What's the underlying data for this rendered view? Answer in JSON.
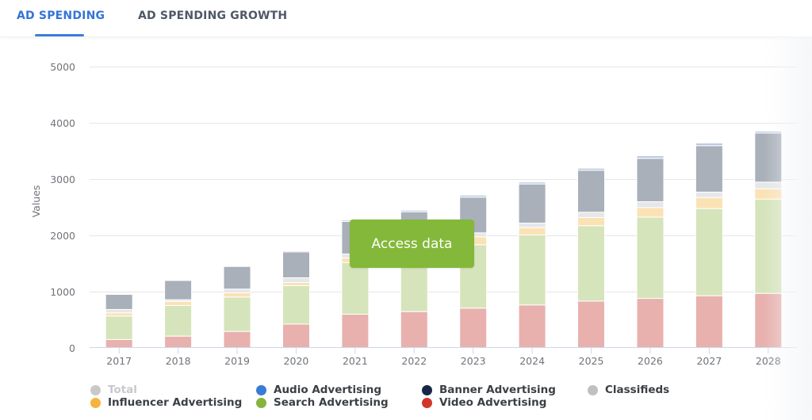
{
  "tabs": [
    {
      "label": "AD SPENDING",
      "active": true
    },
    {
      "label": "AD SPENDING GROWTH",
      "active": false
    }
  ],
  "overlay": {
    "access_button_label": "Access data"
  },
  "legend": [
    {
      "name": "Total",
      "color": "#c8c8c8",
      "enabled": false
    },
    {
      "name": "Audio Advertising",
      "color": "#3a7bd5",
      "enabled": true
    },
    {
      "name": "Banner Advertising",
      "color": "#162647",
      "enabled": true
    },
    {
      "name": "Classifieds",
      "color": "#c0c0c0",
      "enabled": true
    },
    {
      "name": "Influencer Advertising",
      "color": "#f4b43f",
      "enabled": true
    },
    {
      "name": "Search Advertising",
      "color": "#86b43e",
      "enabled": true
    },
    {
      "name": "Video Advertising",
      "color": "#d2362a",
      "enabled": true
    }
  ],
  "chart_data": {
    "type": "bar",
    "stacked": true,
    "title": "",
    "xlabel": "",
    "ylabel": "Values",
    "ylim": [
      0,
      5000
    ],
    "yticks": [
      0,
      1000,
      2000,
      3000,
      4000,
      5000
    ],
    "grid": true,
    "legend_position": "bottom",
    "categories": [
      "2017",
      "2018",
      "2019",
      "2020",
      "2021",
      "2022",
      "2023",
      "2024",
      "2025",
      "2026",
      "2027",
      "2028"
    ],
    "series": [
      {
        "name": "Video Advertising",
        "fill": "#e8b1ae",
        "values": [
          141,
          202,
          286,
          418,
          592,
          638,
          700,
          756,
          826,
          873,
          920,
          962
        ]
      },
      {
        "name": "Search Advertising",
        "fill": "#d6e4bb",
        "values": [
          418,
          544,
          611,
          681,
          915,
          1060,
          1127,
          1244,
          1339,
          1446,
          1549,
          1676
        ]
      },
      {
        "name": "Influencer Advertising",
        "fill": "#fbe2b5",
        "values": [
          56,
          71,
          75,
          56,
          85,
          90,
          141,
          131,
          145,
          169,
          197,
          183
        ]
      },
      {
        "name": "Classifieds",
        "fill": "#e6e7e9",
        "values": [
          61,
          33,
          66,
          84,
          70,
          75,
          70,
          80,
          94,
          104,
          95,
          119
        ]
      },
      {
        "name": "Banner Advertising",
        "fill": "#a9b0b9",
        "values": [
          268,
          342,
          403,
          461,
          577,
          550,
          634,
          695,
          746,
          770,
          826,
          873
        ]
      },
      {
        "name": "Audio Advertising",
        "fill": "#bccbe6",
        "values": [
          10,
          10,
          15,
          18,
          24,
          28,
          36,
          33,
          38,
          46,
          47,
          32
        ]
      }
    ]
  }
}
